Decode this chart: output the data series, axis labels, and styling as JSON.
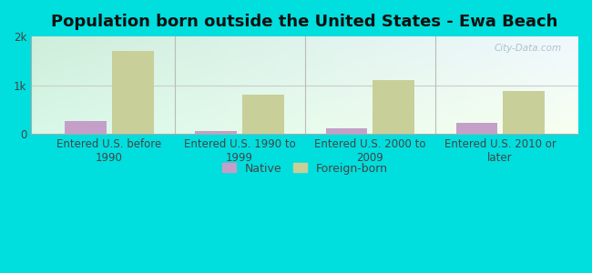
{
  "title": "Population born outside the United States - Ewa Beach",
  "categories": [
    "Entered U.S. before\n1990",
    "Entered U.S. 1990 to\n1999",
    "Entered U.S. 2000 to\n2009",
    "Entered U.S. 2010 or\nlater"
  ],
  "native_values": [
    270,
    60,
    110,
    220
  ],
  "foreign_values": [
    1700,
    800,
    1100,
    880
  ],
  "native_color": "#c49fc8",
  "foreign_color": "#c8cf99",
  "outer_bg": "#00dede",
  "ylim": [
    0,
    2000
  ],
  "yticks": [
    0,
    1000,
    2000
  ],
  "ytick_labels": [
    "0",
    "1k",
    "2k"
  ],
  "bar_width": 0.32,
  "title_fontsize": 13,
  "tick_fontsize": 8.5,
  "legend_fontsize": 9,
  "watermark": "City-Data.com",
  "hline_color": "#cccccc",
  "vline_color": "#bbbbbb",
  "spine_color": "#aaaaaa",
  "grad_topleft": "#ceeeda",
  "grad_bottomright": "#f8fff0",
  "grad_topright": "#f0f8ff",
  "grad_bottomleft": "#d8f8e8"
}
